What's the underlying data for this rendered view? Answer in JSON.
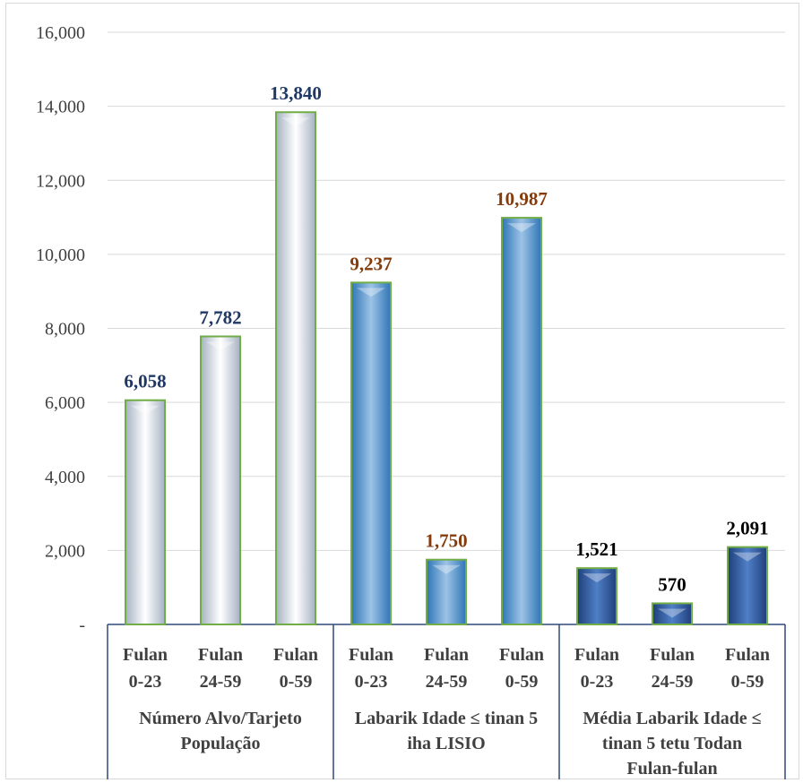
{
  "chart_data": {
    "type": "bar",
    "y_tick_labels": [
      "-",
      "2,000",
      "4,000",
      "6,000",
      "8,000",
      "10,000",
      "12,000",
      "14,000",
      "16,000"
    ],
    "ylim": [
      0,
      16000
    ],
    "grid": true,
    "groups": [
      {
        "label_lines": [
          "Número Alvo/Tarjeto",
          "População"
        ],
        "style": "white",
        "label_color": "#1f3864",
        "bars": [
          {
            "category_lines": [
              "Fulan",
              "0-23"
            ],
            "value": 6058,
            "label": "6,058"
          },
          {
            "category_lines": [
              "Fulan",
              "24-59"
            ],
            "value": 7782,
            "label": "7,782"
          },
          {
            "category_lines": [
              "Fulan",
              "0-59"
            ],
            "value": 13840,
            "label": "13,840"
          }
        ]
      },
      {
        "label_lines": [
          "Labarik Idade ≤ tinan 5",
          "iha LISIO"
        ],
        "style": "light-blue",
        "label_color": "#843c0c",
        "bars": [
          {
            "category_lines": [
              "Fulan",
              "0-23"
            ],
            "value": 9237,
            "label": "9,237"
          },
          {
            "category_lines": [
              "Fulan",
              "24-59"
            ],
            "value": 1750,
            "label": "1,750"
          },
          {
            "category_lines": [
              "Fulan",
              "0-59"
            ],
            "value": 10987,
            "label": "10,987"
          }
        ]
      },
      {
        "label_lines": [
          "Média Labarik Idade ≤",
          "tinan 5 tetu Todan",
          "Fulan-fulan"
        ],
        "style": "dark-blue",
        "label_color": "#000000",
        "bars": [
          {
            "category_lines": [
              "Fulan",
              "0-23"
            ],
            "value": 1521,
            "label": "1,521"
          },
          {
            "category_lines": [
              "Fulan",
              "24-59"
            ],
            "value": 570,
            "label": "570"
          },
          {
            "category_lines": [
              "Fulan",
              "0-59"
            ],
            "value": 2091,
            "label": "2,091"
          }
        ]
      }
    ],
    "colors": {
      "grid": "#d9d9d9",
      "axis": "#2f4a7a",
      "white_top": "#ffffff",
      "white_side": "#a6b2c2",
      "light_blue_top": "#9dc3e6",
      "light_blue_side": "#2e75b6",
      "dark_blue_top": "#4f7fc7",
      "dark_blue_side": "#1f3f7a",
      "bar_border": "#70ad47"
    }
  }
}
